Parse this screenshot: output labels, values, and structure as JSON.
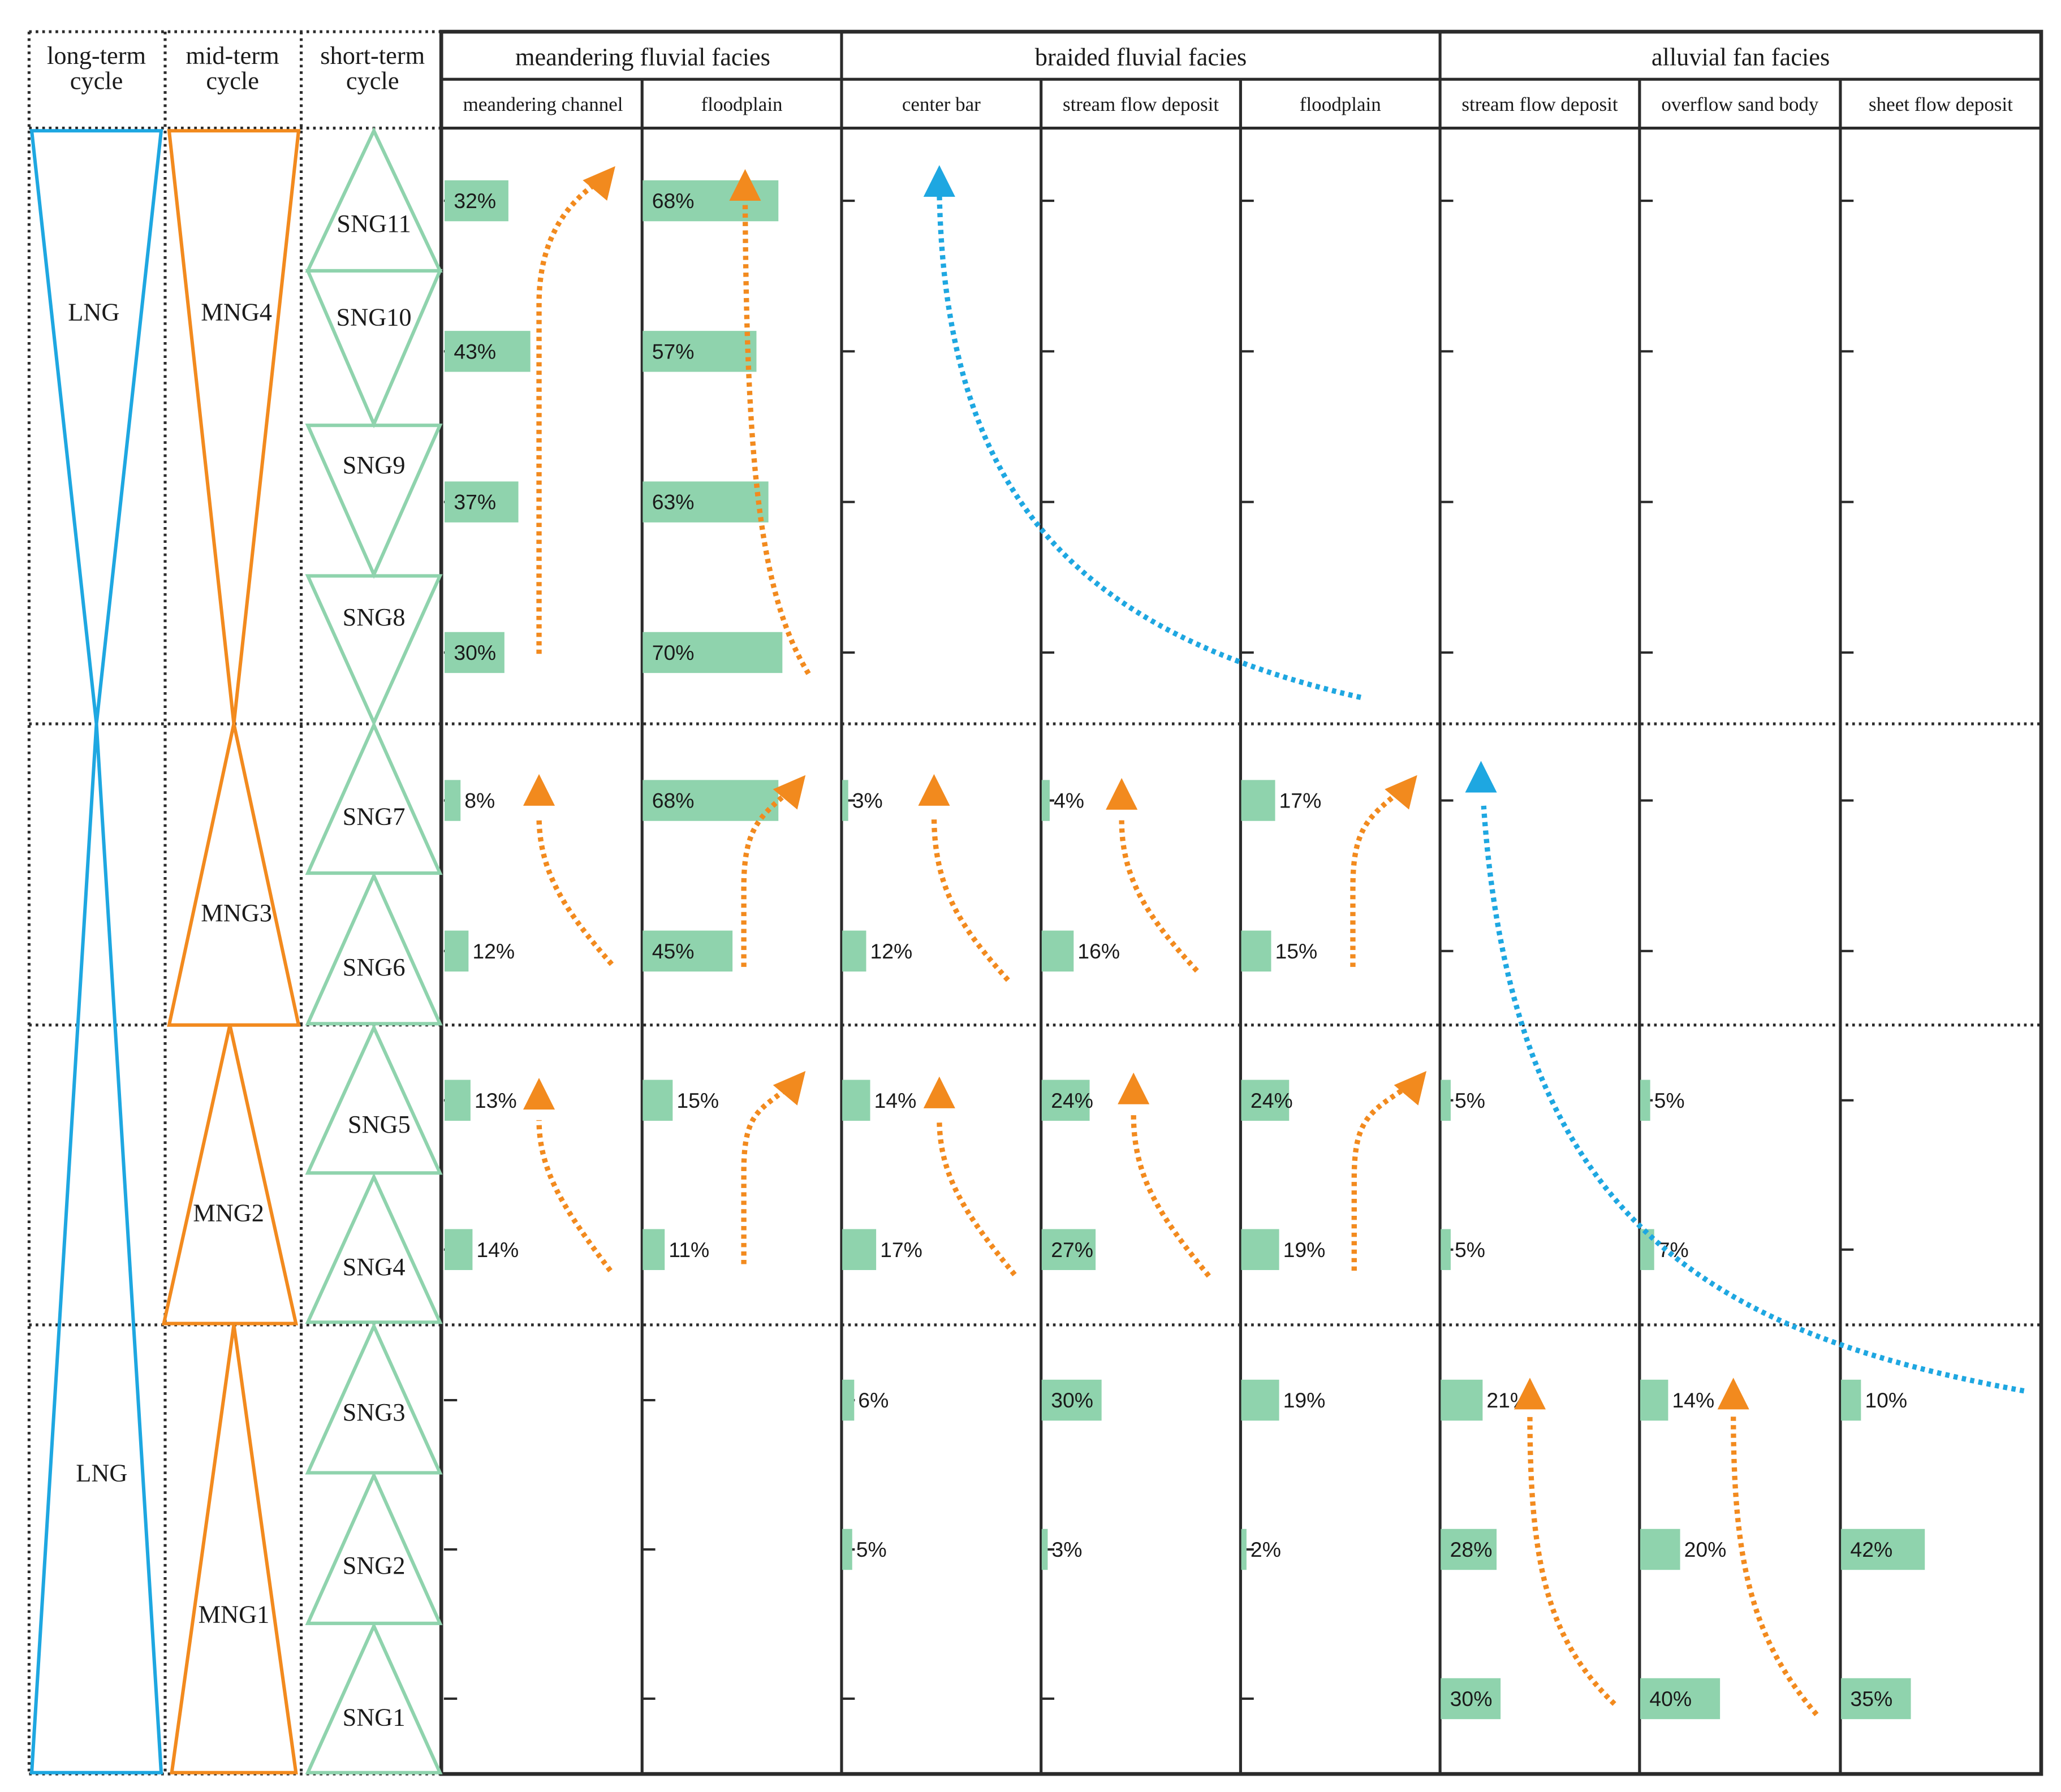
{
  "header": {
    "cycles": {
      "long_term": "long-term cycle",
      "mid_term": "mid-term cycle",
      "short_term": "short-term cycle"
    },
    "facies": [
      {
        "name": "meandering fluvial facies",
        "subfacies": [
          "meandering channel",
          "floodplain"
        ]
      },
      {
        "name": "braided fluvial facies",
        "subfacies": [
          "center bar",
          "stream flow deposit",
          "floodplain"
        ]
      },
      {
        "name": "alluvial fan facies",
        "subfacies": [
          "stream flow deposit",
          "overflow sand body",
          "sheet flow deposit"
        ]
      }
    ]
  },
  "long_term_cycles": [
    {
      "label": "LNG",
      "shape": "inverted-triangle",
      "spans": [
        "SNG11",
        "SNG10",
        "SNG9",
        "SNG8"
      ]
    },
    {
      "label": "LNG",
      "shape": "triangle",
      "spans": [
        "SNG7",
        "SNG6",
        "SNG5",
        "SNG4",
        "SNG3",
        "SNG2",
        "SNG1"
      ]
    }
  ],
  "mid_term_cycles": [
    {
      "label": "MNG4",
      "shape": "inverted-triangle",
      "spans": [
        "SNG11",
        "SNG10",
        "SNG9",
        "SNG8"
      ]
    },
    {
      "label": "MNG3",
      "shape": "triangle",
      "spans": [
        "SNG7",
        "SNG6"
      ]
    },
    {
      "label": "MNG2",
      "shape": "triangle",
      "spans": [
        "SNG5",
        "SNG4"
      ]
    },
    {
      "label": "MNG1",
      "shape": "triangle",
      "spans": [
        "SNG3",
        "SNG2",
        "SNG1"
      ]
    }
  ],
  "short_term_cycles": [
    {
      "label": "SNG11",
      "shape": "triangle"
    },
    {
      "label": "SNG10",
      "shape": "inverted-triangle"
    },
    {
      "label": "SNG9",
      "shape": "inverted-triangle"
    },
    {
      "label": "SNG8",
      "shape": "inverted-triangle"
    },
    {
      "label": "SNG7",
      "shape": "triangle"
    },
    {
      "label": "SNG6",
      "shape": "triangle"
    },
    {
      "label": "SNG5",
      "shape": "triangle"
    },
    {
      "label": "SNG4",
      "shape": "triangle"
    },
    {
      "label": "SNG3",
      "shape": "triangle"
    },
    {
      "label": "SNG2",
      "shape": "triangle"
    },
    {
      "label": "SNG1",
      "shape": "triangle"
    }
  ],
  "chart_data": {
    "type": "bar",
    "categories": [
      "SNG11",
      "SNG10",
      "SNG9",
      "SNG8",
      "SNG7",
      "SNG6",
      "SNG5",
      "SNG4",
      "SNG3",
      "SNG2",
      "SNG1"
    ],
    "series": [
      {
        "facies": "meandering fluvial facies",
        "name": "meandering channel",
        "values": [
          32,
          43,
          37,
          30,
          8,
          12,
          13,
          14,
          null,
          null,
          null
        ]
      },
      {
        "facies": "meandering fluvial facies",
        "name": "floodplain",
        "values": [
          68,
          57,
          63,
          70,
          68,
          45,
          15,
          11,
          null,
          null,
          null
        ]
      },
      {
        "facies": "braided fluvial facies",
        "name": "center bar",
        "values": [
          null,
          null,
          null,
          null,
          3,
          12,
          14,
          17,
          6,
          5,
          null
        ]
      },
      {
        "facies": "braided fluvial facies",
        "name": "stream flow deposit",
        "values": [
          null,
          null,
          null,
          null,
          4,
          16,
          24,
          27,
          30,
          3,
          null
        ]
      },
      {
        "facies": "braided fluvial facies",
        "name": "floodplain",
        "values": [
          null,
          null,
          null,
          null,
          17,
          15,
          24,
          19,
          19,
          2,
          null
        ]
      },
      {
        "facies": "alluvial fan facies",
        "name": "stream flow deposit",
        "values": [
          null,
          null,
          null,
          null,
          null,
          null,
          5,
          5,
          21,
          28,
          30
        ]
      },
      {
        "facies": "alluvial fan facies",
        "name": "overflow sand body",
        "values": [
          null,
          null,
          null,
          null,
          null,
          null,
          5,
          7,
          14,
          20,
          40
        ]
      },
      {
        "facies": "alluvial fan facies",
        "name": "sheet flow deposit",
        "values": [
          null,
          null,
          null,
          null,
          null,
          null,
          null,
          null,
          10,
          42,
          35
        ]
      }
    ],
    "value_unit": "%",
    "trend_arrows": [
      {
        "color": "#f28a1e",
        "style": "dotted",
        "column": "meandering channel",
        "from": "SNG8",
        "to": "SNG11"
      },
      {
        "color": "#f28a1e",
        "style": "dotted",
        "column": "floodplain",
        "from": "SNG8",
        "to": "SNG11"
      },
      {
        "color": "#1ea7e1",
        "style": "dotted",
        "column": "braided fluvial facies",
        "from": "SNG8",
        "to": "SNG11"
      },
      {
        "color": "#f28a1e",
        "style": "dotted",
        "column": "meandering channel",
        "from": "SNG6",
        "to": "SNG7"
      },
      {
        "color": "#f28a1e",
        "style": "dotted",
        "column": "floodplain",
        "from": "SNG6",
        "to": "SNG7"
      },
      {
        "color": "#f28a1e",
        "style": "dotted",
        "column": "center bar",
        "from": "SNG6",
        "to": "SNG7"
      },
      {
        "color": "#f28a1e",
        "style": "dotted",
        "column": "stream flow deposit",
        "from": "SNG6",
        "to": "SNG7"
      },
      {
        "color": "#f28a1e",
        "style": "dotted",
        "column": "floodplain (braided)",
        "from": "SNG6",
        "to": "SNG7"
      },
      {
        "color": "#1ea7e1",
        "style": "dotted",
        "column": "alluvial fan facies",
        "from": "SNG3",
        "to": "SNG7"
      },
      {
        "color": "#f28a1e",
        "style": "dotted",
        "column": "meandering channel",
        "from": "SNG4",
        "to": "SNG5"
      },
      {
        "color": "#f28a1e",
        "style": "dotted",
        "column": "floodplain",
        "from": "SNG4",
        "to": "SNG5"
      },
      {
        "color": "#f28a1e",
        "style": "dotted",
        "column": "center bar",
        "from": "SNG4",
        "to": "SNG5"
      },
      {
        "color": "#f28a1e",
        "style": "dotted",
        "column": "stream flow deposit",
        "from": "SNG4",
        "to": "SNG5"
      },
      {
        "color": "#f28a1e",
        "style": "dotted",
        "column": "floodplain (braided)",
        "from": "SNG4",
        "to": "SNG5"
      },
      {
        "color": "#f28a1e",
        "style": "dotted",
        "column": "stream flow deposit (alluvial)",
        "from": "SNG1",
        "to": "SNG3"
      },
      {
        "color": "#f28a1e",
        "style": "dotted",
        "column": "overflow sand body",
        "from": "SNG1",
        "to": "SNG3"
      }
    ]
  },
  "colors": {
    "bar_fill": "#8fd3ad",
    "long_term_line": "#1ea7e1",
    "mid_term_line": "#f28a1e",
    "short_term_line": "#8fd3ad",
    "grid_line": "#2b2b2b",
    "orange_arrow": "#f28a1e",
    "blue_arrow": "#1ea7e1"
  }
}
